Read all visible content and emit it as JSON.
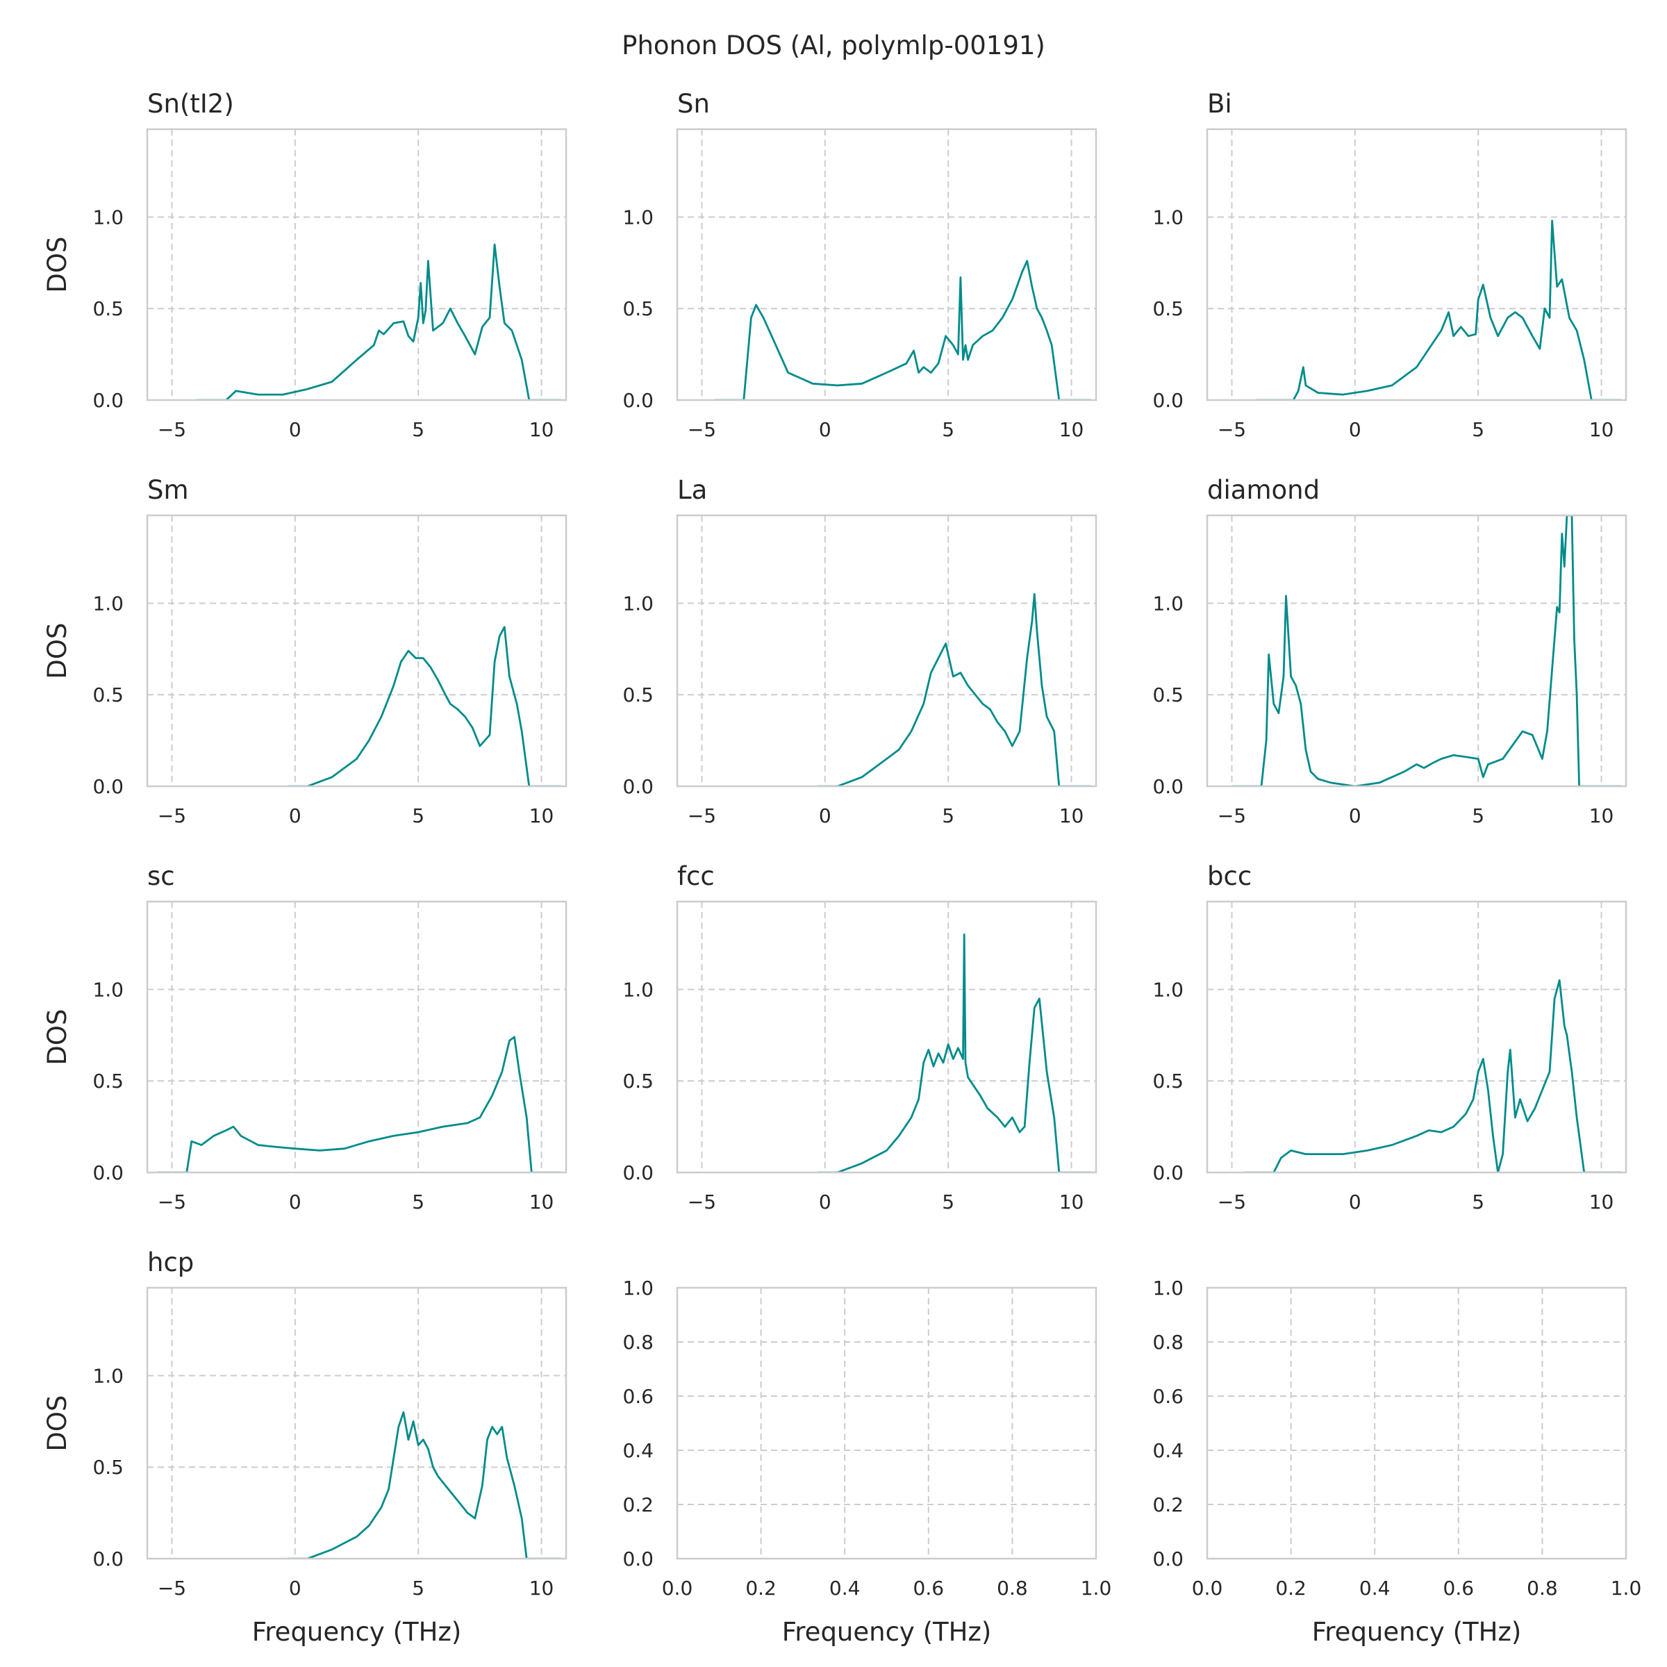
{
  "chart_data": {
    "type": "line",
    "title": "Phonon DOS (Al, polymlp-00191)",
    "xlabel": "Frequency (THz)",
    "ylabel": "DOS",
    "line_color": "#008b8b",
    "grid": true,
    "grid_style": "dashed",
    "xlim": [
      -6,
      11
    ],
    "ylim": [
      0,
      1.48
    ],
    "xticks": [
      -5,
      0,
      5,
      10
    ],
    "yticks": [
      0.0,
      0.5,
      1.0
    ],
    "panels": [
      {
        "title": "Sn(tI2)",
        "x": [
          -4,
          -2.8,
          -2.4,
          -1.5,
          -0.5,
          0.5,
          1.5,
          2.5,
          3.2,
          3.4,
          3.6,
          4.0,
          4.4,
          4.6,
          4.8,
          5.0,
          5.1,
          5.2,
          5.3,
          5.4,
          5.6,
          6.0,
          6.3,
          6.6,
          6.9,
          7.3,
          7.6,
          7.9,
          8.1,
          8.3,
          8.5,
          8.8,
          9.2,
          9.5,
          10.0,
          10.8
        ],
        "y": [
          0,
          0,
          0.05,
          0.03,
          0.03,
          0.06,
          0.1,
          0.22,
          0.3,
          0.38,
          0.36,
          0.42,
          0.43,
          0.35,
          0.32,
          0.45,
          0.64,
          0.42,
          0.49,
          0.76,
          0.38,
          0.42,
          0.5,
          0.42,
          0.35,
          0.25,
          0.4,
          0.45,
          0.85,
          0.62,
          0.42,
          0.38,
          0.22,
          0,
          0,
          0
        ]
      },
      {
        "title": "Sn",
        "x": [
          -4.5,
          -3.3,
          -3.0,
          -2.8,
          -2.5,
          -2.0,
          -1.5,
          -1.0,
          -0.5,
          0.5,
          1.5,
          2.5,
          3.3,
          3.6,
          3.8,
          4.0,
          4.3,
          4.6,
          4.9,
          5.2,
          5.4,
          5.5,
          5.6,
          5.7,
          5.8,
          6.0,
          6.4,
          6.8,
          7.2,
          7.6,
          8.0,
          8.2,
          8.4,
          8.6,
          8.8,
          9.0,
          9.2,
          9.5,
          10.0,
          10.8
        ],
        "y": [
          0,
          0,
          0.45,
          0.52,
          0.45,
          0.3,
          0.15,
          0.12,
          0.09,
          0.08,
          0.09,
          0.15,
          0.2,
          0.27,
          0.15,
          0.18,
          0.15,
          0.2,
          0.35,
          0.3,
          0.25,
          0.67,
          0.22,
          0.3,
          0.22,
          0.3,
          0.35,
          0.38,
          0.45,
          0.55,
          0.7,
          0.76,
          0.62,
          0.5,
          0.45,
          0.38,
          0.3,
          0,
          0,
          0
        ]
      },
      {
        "title": "Bi",
        "x": [
          -4,
          -2.5,
          -2.3,
          -2.1,
          -2.0,
          -1.5,
          -0.5,
          0.5,
          1.5,
          2.5,
          3.0,
          3.5,
          3.8,
          4.0,
          4.3,
          4.6,
          4.9,
          5.0,
          5.2,
          5.5,
          5.8,
          6.2,
          6.5,
          6.8,
          7.2,
          7.5,
          7.7,
          7.9,
          8.0,
          8.2,
          8.4,
          8.7,
          9.0,
          9.3,
          9.6,
          10.0,
          10.8
        ],
        "y": [
          0,
          0,
          0.05,
          0.18,
          0.08,
          0.04,
          0.03,
          0.05,
          0.08,
          0.18,
          0.28,
          0.38,
          0.48,
          0.35,
          0.4,
          0.35,
          0.36,
          0.55,
          0.63,
          0.45,
          0.35,
          0.45,
          0.48,
          0.45,
          0.35,
          0.28,
          0.5,
          0.45,
          0.98,
          0.62,
          0.66,
          0.45,
          0.38,
          0.22,
          0,
          0,
          0
        ]
      },
      {
        "title": "Sm",
        "x": [
          -0.3,
          0.5,
          1.5,
          2.5,
          3.0,
          3.5,
          4.0,
          4.3,
          4.6,
          4.9,
          5.2,
          5.5,
          5.8,
          6.1,
          6.3,
          6.6,
          6.9,
          7.2,
          7.5,
          7.9,
          8.1,
          8.3,
          8.5,
          8.7,
          9.0,
          9.2,
          9.5,
          10.0,
          10.8
        ],
        "y": [
          0,
          0,
          0.05,
          0.15,
          0.25,
          0.38,
          0.55,
          0.68,
          0.74,
          0.7,
          0.7,
          0.65,
          0.58,
          0.5,
          0.45,
          0.42,
          0.38,
          0.32,
          0.22,
          0.28,
          0.68,
          0.82,
          0.87,
          0.6,
          0.45,
          0.3,
          0,
          0,
          0
        ]
      },
      {
        "title": "La",
        "x": [
          -0.3,
          0.5,
          1.5,
          2.5,
          3.0,
          3.5,
          4.0,
          4.3,
          4.6,
          4.9,
          5.2,
          5.5,
          5.8,
          6.1,
          6.4,
          6.7,
          7.0,
          7.3,
          7.6,
          7.9,
          8.2,
          8.4,
          8.5,
          8.6,
          8.8,
          9.0,
          9.3,
          9.5,
          10.0,
          10.8
        ],
        "y": [
          0,
          0,
          0.05,
          0.15,
          0.2,
          0.3,
          0.45,
          0.62,
          0.7,
          0.78,
          0.6,
          0.62,
          0.55,
          0.5,
          0.45,
          0.42,
          0.35,
          0.3,
          0.22,
          0.3,
          0.7,
          0.9,
          1.05,
          0.85,
          0.55,
          0.38,
          0.3,
          0,
          0,
          0
        ]
      },
      {
        "title": "diamond",
        "x": [
          -5.0,
          -3.8,
          -3.6,
          -3.5,
          -3.3,
          -3.1,
          -2.9,
          -2.8,
          -2.6,
          -2.4,
          -2.2,
          -2.0,
          -1.8,
          -1.5,
          -1.0,
          0,
          1.0,
          2.0,
          2.5,
          2.8,
          3.2,
          3.5,
          4.0,
          4.5,
          5.0,
          5.2,
          5.4,
          6.0,
          6.8,
          7.2,
          7.6,
          7.8,
          8.2,
          8.3,
          8.4,
          8.5,
          8.6,
          8.7,
          8.8,
          8.9,
          9.0,
          9.1,
          9.5,
          10.0,
          10.8
        ],
        "y": [
          0,
          0,
          0.25,
          0.72,
          0.45,
          0.4,
          0.6,
          1.04,
          0.6,
          0.55,
          0.45,
          0.2,
          0.08,
          0.04,
          0.02,
          0.0,
          0.02,
          0.08,
          0.12,
          0.1,
          0.13,
          0.15,
          0.17,
          0.16,
          0.15,
          0.05,
          0.12,
          0.15,
          0.3,
          0.28,
          0.15,
          0.3,
          0.98,
          0.95,
          1.38,
          1.2,
          1.48,
          1.48,
          1.48,
          0.8,
          0.5,
          0,
          0,
          0,
          0
        ]
      },
      {
        "title": "sc",
        "x": [
          -5.6,
          -4.4,
          -4.2,
          -3.8,
          -3.3,
          -2.8,
          -2.5,
          -2.2,
          -1.5,
          -0.8,
          0,
          1.0,
          2.0,
          3.0,
          4.0,
          5.0,
          6.0,
          7.0,
          7.5,
          8.0,
          8.4,
          8.7,
          8.9,
          9.1,
          9.4,
          9.6,
          10.0,
          10.8
        ],
        "y": [
          0,
          0,
          0.17,
          0.15,
          0.2,
          0.23,
          0.25,
          0.2,
          0.15,
          0.14,
          0.13,
          0.12,
          0.13,
          0.17,
          0.2,
          0.22,
          0.25,
          0.27,
          0.3,
          0.42,
          0.55,
          0.72,
          0.74,
          0.55,
          0.3,
          0,
          0,
          0
        ]
      },
      {
        "title": "fcc",
        "x": [
          -0.3,
          0.5,
          1.5,
          2.5,
          3.0,
          3.5,
          3.8,
          4.0,
          4.2,
          4.4,
          4.6,
          4.8,
          5.0,
          5.2,
          5.4,
          5.6,
          5.65,
          5.7,
          5.8,
          6.0,
          6.3,
          6.6,
          7.0,
          7.3,
          7.6,
          7.9,
          8.1,
          8.3,
          8.5,
          8.7,
          9.0,
          9.3,
          9.5,
          10.0,
          10.8
        ],
        "y": [
          0,
          0,
          0.05,
          0.12,
          0.2,
          0.3,
          0.4,
          0.6,
          0.67,
          0.58,
          0.65,
          0.6,
          0.7,
          0.62,
          0.68,
          0.62,
          1.3,
          0.6,
          0.52,
          0.48,
          0.42,
          0.35,
          0.3,
          0.25,
          0.3,
          0.22,
          0.25,
          0.6,
          0.9,
          0.95,
          0.55,
          0.3,
          0,
          0,
          0
        ]
      },
      {
        "title": "bcc",
        "x": [
          -4.5,
          -3.3,
          -3.0,
          -2.6,
          -2.0,
          -1.5,
          -0.5,
          0.5,
          1.5,
          2.5,
          3.0,
          3.5,
          4.0,
          4.5,
          4.8,
          5.0,
          5.2,
          5.4,
          5.6,
          5.8,
          6.0,
          6.2,
          6.3,
          6.5,
          6.7,
          7.0,
          7.3,
          7.6,
          7.9,
          8.1,
          8.3,
          8.5,
          8.6,
          8.8,
          9.0,
          9.3,
          9.6,
          10.0,
          10.8
        ],
        "y": [
          0,
          0,
          0.08,
          0.12,
          0.1,
          0.1,
          0.1,
          0.12,
          0.15,
          0.2,
          0.23,
          0.22,
          0.25,
          0.32,
          0.4,
          0.55,
          0.62,
          0.45,
          0.2,
          0.0,
          0.1,
          0.55,
          0.67,
          0.3,
          0.4,
          0.28,
          0.35,
          0.45,
          0.55,
          0.95,
          1.05,
          0.8,
          0.75,
          0.55,
          0.3,
          0,
          0,
          0,
          0
        ]
      },
      {
        "title": "hcp",
        "x": [
          -0.3,
          0.5,
          1.5,
          2.5,
          3.0,
          3.5,
          3.8,
          4.0,
          4.2,
          4.4,
          4.6,
          4.8,
          5.0,
          5.2,
          5.4,
          5.6,
          5.8,
          6.1,
          6.4,
          6.7,
          7.0,
          7.3,
          7.6,
          7.8,
          8.0,
          8.2,
          8.4,
          8.6,
          8.9,
          9.2,
          9.4,
          9.6,
          10.0,
          10.8
        ],
        "y": [
          0,
          0,
          0.05,
          0.12,
          0.18,
          0.28,
          0.38,
          0.55,
          0.72,
          0.8,
          0.65,
          0.75,
          0.62,
          0.65,
          0.6,
          0.5,
          0.45,
          0.4,
          0.35,
          0.3,
          0.25,
          0.22,
          0.4,
          0.65,
          0.72,
          0.68,
          0.72,
          0.55,
          0.4,
          0.22,
          0,
          0,
          0,
          0
        ]
      }
    ],
    "empty_panels": [
      {
        "xlim": [
          0.0,
          1.0
        ],
        "ylim": [
          0.0,
          1.0
        ],
        "xticks": [
          "0.0",
          "0.2",
          "0.4",
          "0.6",
          "0.8",
          "1.0"
        ],
        "yticks": [
          "0.0",
          "0.2",
          "0.4",
          "0.6",
          "0.8",
          "1.0"
        ]
      },
      {
        "xlim": [
          0.0,
          1.0
        ],
        "ylim": [
          0.0,
          1.0
        ],
        "xticks": [
          "0.0",
          "0.2",
          "0.4",
          "0.6",
          "0.8",
          "1.0"
        ],
        "yticks": [
          "0.0",
          "0.2",
          "0.4",
          "0.6",
          "0.8",
          "1.0"
        ]
      }
    ]
  }
}
